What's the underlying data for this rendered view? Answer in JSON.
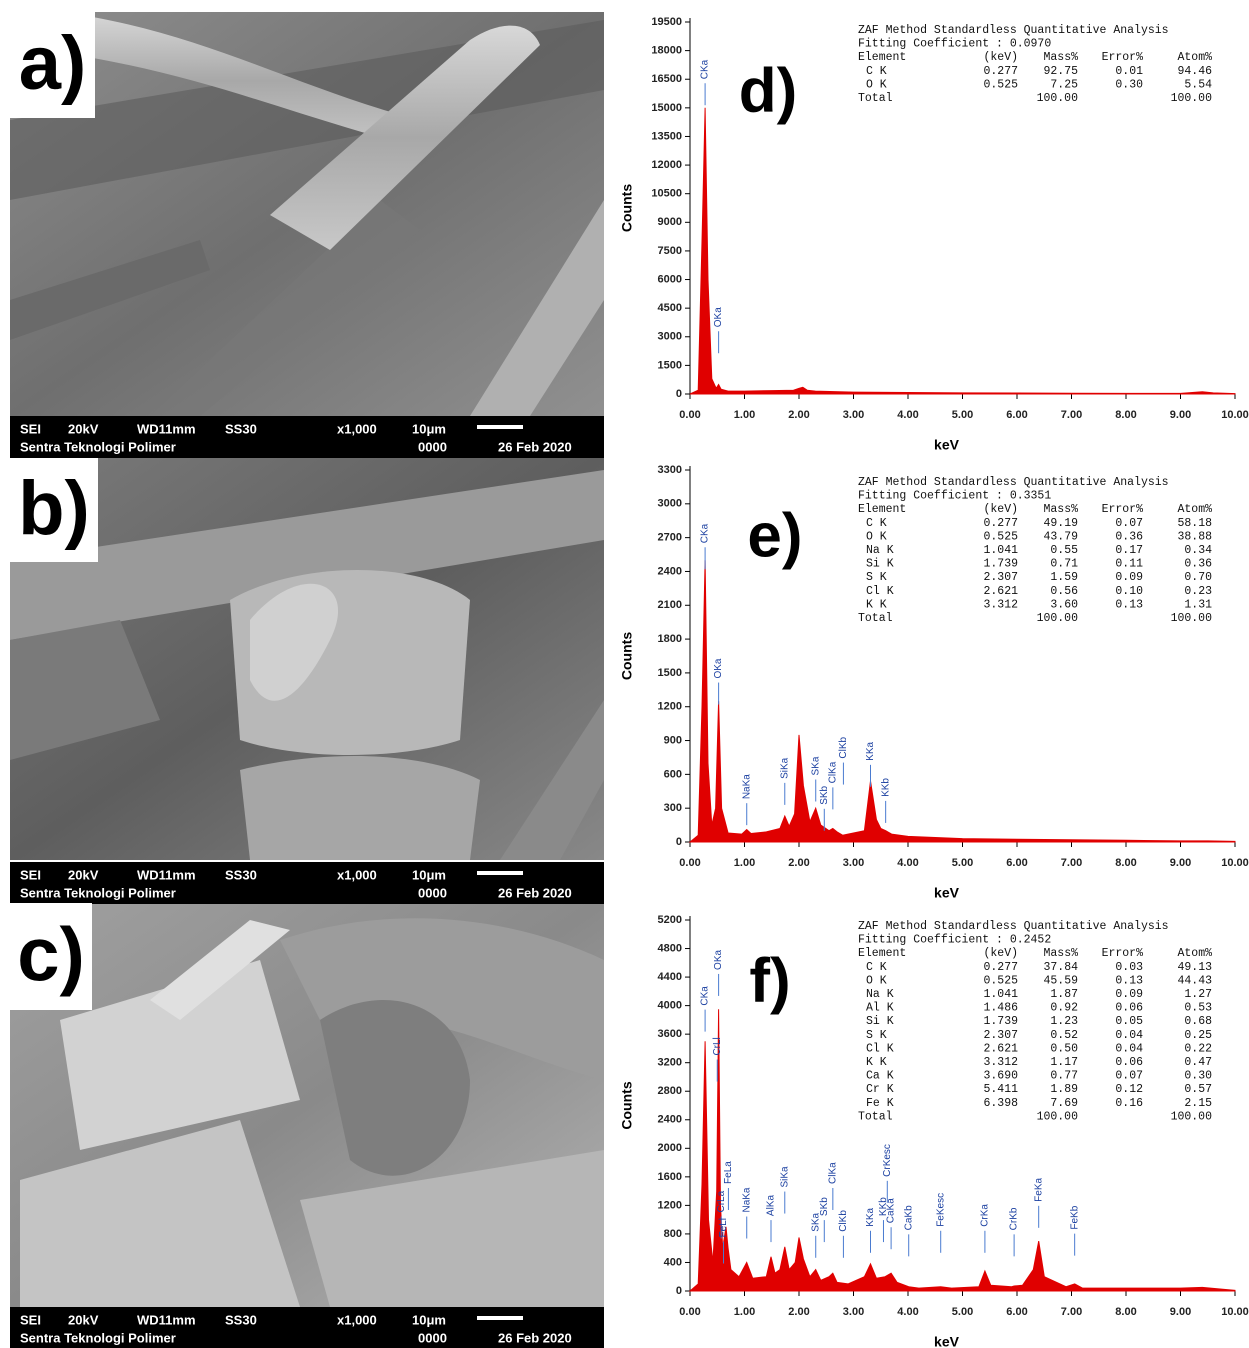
{
  "sem_panels": [
    {
      "label": "a)",
      "info": [
        "SEI",
        "20kV",
        "WD11mm",
        "SS30",
        "x1,000",
        "10μm",
        "Sentra Teknologi Polimer",
        "0000",
        "26 Feb 2020"
      ]
    },
    {
      "label": "b)",
      "info": [
        "SEI",
        "20kV",
        "WD11mm",
        "SS30",
        "x1,000",
        "10μm",
        "Sentra Teknologi Polimer",
        "0000",
        "26 Feb 2020"
      ]
    },
    {
      "label": "c)",
      "info": [
        "SEI",
        "20kV",
        "WD11mm",
        "SS30",
        "x1,000",
        "10μm",
        "Sentra Teknologi Polimer",
        "0000",
        "26 Feb 2020"
      ]
    }
  ],
  "chart_data": [
    {
      "type": "area",
      "panel_label": "d)",
      "x_label": "keV",
      "y_label": "Counts",
      "color": "#e00000",
      "xlim": [
        0,
        10
      ],
      "ylim": [
        0,
        19500
      ],
      "xticks": [
        {
          "value": 0,
          "label": "0.00"
        },
        {
          "value": 1,
          "label": "1.00"
        },
        {
          "value": 2,
          "label": "2.00"
        },
        {
          "value": 3,
          "label": "3.00"
        },
        {
          "value": 4,
          "label": "4.00"
        },
        {
          "value": 5,
          "label": "5.00"
        },
        {
          "value": 6,
          "label": "6.00"
        },
        {
          "value": 7,
          "label": "7.00"
        },
        {
          "value": 8,
          "label": "8.00"
        },
        {
          "value": 9,
          "label": "9.00"
        },
        {
          "value": 10,
          "label": "10.00"
        }
      ],
      "yticks": [
        0,
        1500,
        3000,
        4500,
        6000,
        7500,
        9000,
        10500,
        12000,
        13500,
        15000,
        16500,
        18000,
        19500
      ],
      "x": [
        0,
        0.15,
        0.22,
        0.277,
        0.33,
        0.4,
        0.48,
        0.525,
        0.57,
        0.7,
        1.0,
        1.5,
        1.9,
        2.0,
        2.07,
        2.15,
        2.3,
        3,
        4,
        5,
        6,
        7,
        8,
        9,
        9.4,
        9.6,
        10
      ],
      "values": [
        0,
        200,
        8000,
        15000,
        6000,
        800,
        300,
        500,
        250,
        150,
        150,
        180,
        200,
        300,
        350,
        200,
        150,
        100,
        80,
        60,
        50,
        40,
        30,
        30,
        120,
        60,
        20
      ],
      "annotations": [
        {
          "text": "CKa",
          "x": 0.277,
          "y": 16500
        },
        {
          "text": "OKa",
          "x": 0.525,
          "y": 3500
        }
      ],
      "table": {
        "title": "ZAF Method Standardless Quantitative Analysis",
        "fitting": "Fitting Coefficient : 0.0970",
        "header": [
          "Element",
          "(keV)",
          "Mass%",
          "Error%",
          "Atom%"
        ],
        "rows": [
          [
            "C K",
            "0.277",
            "92.75",
            "0.01",
            "94.46"
          ],
          [
            "O K",
            "0.525",
            "7.25",
            "0.30",
            "5.54"
          ]
        ],
        "total": [
          "Total",
          "100.00",
          "100.00"
        ]
      }
    },
    {
      "type": "area",
      "panel_label": "e)",
      "x_label": "keV",
      "y_label": "Counts",
      "color": "#e00000",
      "xlim": [
        0,
        10
      ],
      "ylim": [
        0,
        3300
      ],
      "xticks": [
        {
          "value": 0,
          "label": "0.00"
        },
        {
          "value": 1,
          "label": "1.00"
        },
        {
          "value": 2,
          "label": "2.00"
        },
        {
          "value": 3,
          "label": "3.00"
        },
        {
          "value": 4,
          "label": "4.00"
        },
        {
          "value": 5,
          "label": "5.00"
        },
        {
          "value": 6,
          "label": "6.00"
        },
        {
          "value": 7,
          "label": "7.00"
        },
        {
          "value": 8,
          "label": "8.00"
        },
        {
          "value": 9,
          "label": "9.00"
        },
        {
          "value": 10,
          "label": "10.00"
        }
      ],
      "yticks": [
        0,
        300,
        600,
        900,
        1200,
        1500,
        1800,
        2100,
        2400,
        2700,
        3000,
        3300
      ],
      "x": [
        0,
        0.15,
        0.22,
        0.277,
        0.33,
        0.4,
        0.47,
        0.525,
        0.58,
        0.7,
        0.95,
        1.041,
        1.12,
        1.4,
        1.65,
        1.74,
        1.82,
        1.92,
        2.0,
        2.08,
        2.2,
        2.307,
        2.4,
        2.55,
        2.62,
        2.7,
        2.8,
        2.9,
        3.2,
        3.312,
        3.42,
        3.5,
        3.59,
        3.7,
        4.0,
        4.5,
        5,
        6,
        7,
        8,
        9,
        9.5,
        10
      ],
      "values": [
        0,
        60,
        1200,
        2500,
        700,
        150,
        300,
        1250,
        300,
        80,
        70,
        110,
        75,
        90,
        120,
        230,
        140,
        250,
        950,
        500,
        180,
        300,
        150,
        100,
        120,
        90,
        60,
        70,
        100,
        540,
        200,
        120,
        100,
        70,
        50,
        40,
        30,
        25,
        20,
        15,
        10,
        10,
        5
      ],
      "annotations": [
        {
          "text": "CKa",
          "x": 0.277,
          "y": 2650
        },
        {
          "text": "OKa",
          "x": 0.525,
          "y": 1450
        },
        {
          "text": "NaKa",
          "x": 1.041,
          "y": 380
        },
        {
          "text": "SiKa",
          "x": 1.739,
          "y": 560
        },
        {
          "text": "SKa",
          "x": 2.307,
          "y": 590
        },
        {
          "text": "SKb",
          "x": 2.464,
          "y": 330
        },
        {
          "text": "ClKa",
          "x": 2.621,
          "y": 520
        },
        {
          "text": "ClKb",
          "x": 2.815,
          "y": 740
        },
        {
          "text": "KKa",
          "x": 3.312,
          "y": 720
        },
        {
          "text": "KKb",
          "x": 3.59,
          "y": 400
        }
      ],
      "table": {
        "title": "ZAF Method Standardless Quantitative Analysis",
        "fitting": "Fitting Coefficient : 0.3351",
        "header": [
          "Element",
          "(keV)",
          "Mass%",
          "Error%",
          "Atom%"
        ],
        "rows": [
          [
            "C K",
            "0.277",
            "49.19",
            "0.07",
            "58.18"
          ],
          [
            "O K",
            "0.525",
            "43.79",
            "0.36",
            "38.88"
          ],
          [
            "Na K",
            "1.041",
            "0.55",
            "0.17",
            "0.34"
          ],
          [
            "Si K",
            "1.739",
            "0.71",
            "0.11",
            "0.36"
          ],
          [
            "S K",
            "2.307",
            "1.59",
            "0.09",
            "0.70"
          ],
          [
            "Cl K",
            "2.621",
            "0.56",
            "0.10",
            "0.23"
          ],
          [
            "K K",
            "3.312",
            "3.60",
            "0.13",
            "1.31"
          ]
        ],
        "total": [
          "Total",
          "100.00",
          "100.00"
        ]
      }
    },
    {
      "type": "area",
      "panel_label": "f)",
      "x_label": "keV",
      "y_label": "Counts",
      "color": "#e00000",
      "xlim": [
        0,
        10
      ],
      "ylim": [
        0,
        5200
      ],
      "xticks": [
        {
          "value": 0,
          "label": "0.00"
        },
        {
          "value": 1,
          "label": "1.00"
        },
        {
          "value": 2,
          "label": "2.00"
        },
        {
          "value": 3,
          "label": "3.00"
        },
        {
          "value": 4,
          "label": "4.00"
        },
        {
          "value": 5,
          "label": "5.00"
        },
        {
          "value": 6,
          "label": "6.00"
        },
        {
          "value": 7,
          "label": "7.00"
        },
        {
          "value": 8,
          "label": "8.00"
        },
        {
          "value": 9,
          "label": "9.00"
        },
        {
          "value": 10,
          "label": "10.00"
        }
      ],
      "yticks": [
        0,
        400,
        800,
        1200,
        1600,
        2000,
        2400,
        2800,
        3200,
        3600,
        4000,
        4400,
        4800,
        5200
      ],
      "x": [
        0,
        0.15,
        0.22,
        0.277,
        0.34,
        0.42,
        0.49,
        0.525,
        0.56,
        0.6,
        0.66,
        0.7,
        0.75,
        0.9,
        1.041,
        1.15,
        1.4,
        1.486,
        1.56,
        1.65,
        1.739,
        1.82,
        1.93,
        2.0,
        2.08,
        2.2,
        2.307,
        2.4,
        2.55,
        2.621,
        2.7,
        2.9,
        3.2,
        3.312,
        3.42,
        3.58,
        3.69,
        3.8,
        4.013,
        4.2,
        4.6,
        4.8,
        5.3,
        5.411,
        5.52,
        5.9,
        5.947,
        6.1,
        6.3,
        6.398,
        6.5,
        6.9,
        7.058,
        7.2,
        8,
        9,
        9.4,
        9.7,
        10
      ],
      "values": [
        0,
        100,
        1500,
        3500,
        1000,
        400,
        1400,
        3950,
        1200,
        600,
        900,
        600,
        300,
        200,
        400,
        180,
        200,
        480,
        250,
        300,
        620,
        300,
        400,
        750,
        450,
        200,
        300,
        150,
        200,
        250,
        120,
        100,
        200,
        380,
        180,
        200,
        250,
        120,
        60,
        40,
        60,
        40,
        60,
        280,
        80,
        60,
        70,
        80,
        300,
        700,
        200,
        60,
        100,
        40,
        40,
        40,
        50,
        30,
        10
      ],
      "annotations": [
        {
          "text": "CKa",
          "x": 0.277,
          "y": 4000
        },
        {
          "text": "OKa",
          "x": 0.525,
          "y": 4500
        },
        {
          "text": "CrLl",
          "x": 0.5,
          "y": 3300
        },
        {
          "text": "FeLa",
          "x": 0.705,
          "y": 1500
        },
        {
          "text": "CrLa",
          "x": 0.573,
          "y": 1100
        },
        {
          "text": "FeLl",
          "x": 0.615,
          "y": 750
        },
        {
          "text": "NaKa",
          "x": 1.041,
          "y": 1100
        },
        {
          "text": "AlKa",
          "x": 1.486,
          "y": 1050
        },
        {
          "text": "SiKa",
          "x": 1.739,
          "y": 1450
        },
        {
          "text": "SKa",
          "x": 2.307,
          "y": 830
        },
        {
          "text": "SKb",
          "x": 2.464,
          "y": 1050
        },
        {
          "text": "ClKa",
          "x": 2.621,
          "y": 1500
        },
        {
          "text": "ClKb",
          "x": 2.815,
          "y": 830
        },
        {
          "text": "KKa",
          "x": 3.312,
          "y": 900
        },
        {
          "text": "KKb",
          "x": 3.55,
          "y": 1050
        },
        {
          "text": "CrKesc",
          "x": 3.62,
          "y": 1600
        },
        {
          "text": "CaKa",
          "x": 3.69,
          "y": 950
        },
        {
          "text": "CaKb",
          "x": 4.013,
          "y": 850
        },
        {
          "text": "FeKesc",
          "x": 4.6,
          "y": 900
        },
        {
          "text": "CrKa",
          "x": 5.411,
          "y": 900
        },
        {
          "text": "CrKb",
          "x": 5.947,
          "y": 850
        },
        {
          "text": "FeKa",
          "x": 6.398,
          "y": 1250
        },
        {
          "text": "FeKb",
          "x": 7.058,
          "y": 860
        }
      ],
      "table": {
        "title": "ZAF Method Standardless Quantitative Analysis",
        "fitting": "Fitting Coefficient : 0.2452",
        "header": [
          "Element",
          "(keV)",
          "Mass%",
          "Error%",
          "Atom%"
        ],
        "rows": [
          [
            "C K",
            "0.277",
            "37.84",
            "0.03",
            "49.13"
          ],
          [
            "O K",
            "0.525",
            "45.59",
            "0.13",
            "44.43"
          ],
          [
            "Na K",
            "1.041",
            "1.87",
            "0.09",
            "1.27"
          ],
          [
            "Al K",
            "1.486",
            "0.92",
            "0.06",
            "0.53"
          ],
          [
            "Si K",
            "1.739",
            "1.23",
            "0.05",
            "0.68"
          ],
          [
            "S K",
            "2.307",
            "0.52",
            "0.04",
            "0.25"
          ],
          [
            "Cl K",
            "2.621",
            "0.50",
            "0.04",
            "0.22"
          ],
          [
            "K K",
            "3.312",
            "1.17",
            "0.06",
            "0.47"
          ],
          [
            "Ca K",
            "3.690",
            "0.77",
            "0.07",
            "0.30"
          ],
          [
            "Cr K",
            "5.411",
            "1.89",
            "0.12",
            "0.57"
          ],
          [
            "Fe K",
            "6.398",
            "7.69",
            "0.16",
            "2.15"
          ]
        ],
        "total": [
          "Total",
          "100.00",
          "100.00"
        ]
      }
    }
  ]
}
